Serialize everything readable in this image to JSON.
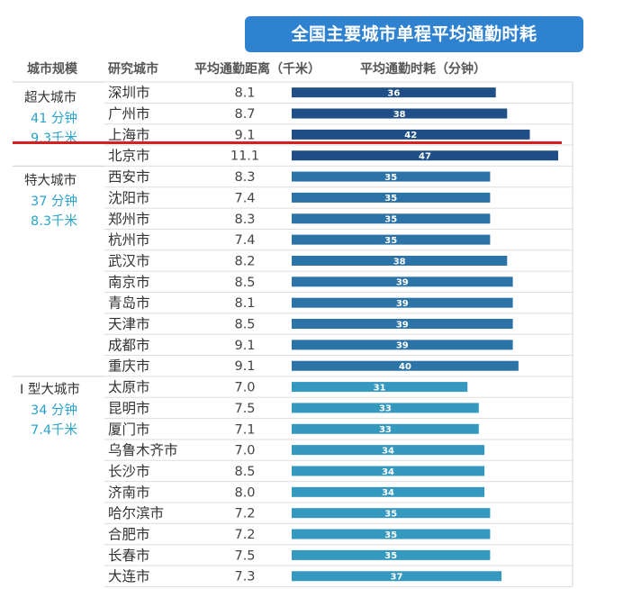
{
  "title": "全国主要城市单程平均通勤时耗",
  "headers": {
    "scale": "城市规模",
    "city": "研究城市",
    "distance": "平均通勤距离（千米）",
    "time": "平均通勤时耗（分钟）"
  },
  "groups": [
    {
      "name": "超大城市",
      "time": "41 分钟",
      "distance": "9.3千米"
    },
    {
      "name": "特大城市",
      "time": "37 分钟",
      "distance": "8.3千米"
    },
    {
      "name": "I 型大城市",
      "time": "34 分钟",
      "distance": "7.4千米"
    }
  ],
  "colors": {
    "title_bg": "#2f82cf",
    "bar_super": "#1f4f86",
    "bar_large": "#2c73a8",
    "bar_type1": "#3598bf",
    "stat_text": "#2aa3c9",
    "red_line": "#d81e1e"
  },
  "chart_data": {
    "type": "bar",
    "orientation": "horizontal",
    "categories": [
      "深圳市",
      "广州市",
      "上海市",
      "北京市",
      "西安市",
      "沈阳市",
      "郑州市",
      "杭州市",
      "武汉市",
      "南京市",
      "青岛市",
      "天津市",
      "成都市",
      "重庆市",
      "太原市",
      "昆明市",
      "厦门市",
      "乌鲁木齐市",
      "长沙市",
      "济南市",
      "哈尔滨市",
      "合肥市",
      "长春市",
      "大连市"
    ],
    "distance": [
      "8.1",
      "8.7",
      "9.1",
      "11.1",
      "8.3",
      "7.4",
      "8.3",
      "7.4",
      "8.2",
      "8.5",
      "8.1",
      "8.5",
      "9.1",
      "9.1",
      "7.0",
      "7.5",
      "7.1",
      "7.0",
      "8.5",
      "8.0",
      "7.2",
      "7.2",
      "7.5",
      "7.3"
    ],
    "values": [
      36,
      38,
      42,
      47,
      35,
      35,
      35,
      35,
      38,
      39,
      39,
      39,
      39,
      40,
      31,
      33,
      33,
      34,
      34,
      34,
      35,
      35,
      35,
      37
    ],
    "group_of_row": [
      0,
      0,
      0,
      0,
      1,
      1,
      1,
      1,
      1,
      1,
      1,
      1,
      1,
      1,
      2,
      2,
      2,
      2,
      2,
      2,
      2,
      2,
      2,
      2
    ],
    "xlim": [
      0,
      47
    ],
    "grid": true
  }
}
